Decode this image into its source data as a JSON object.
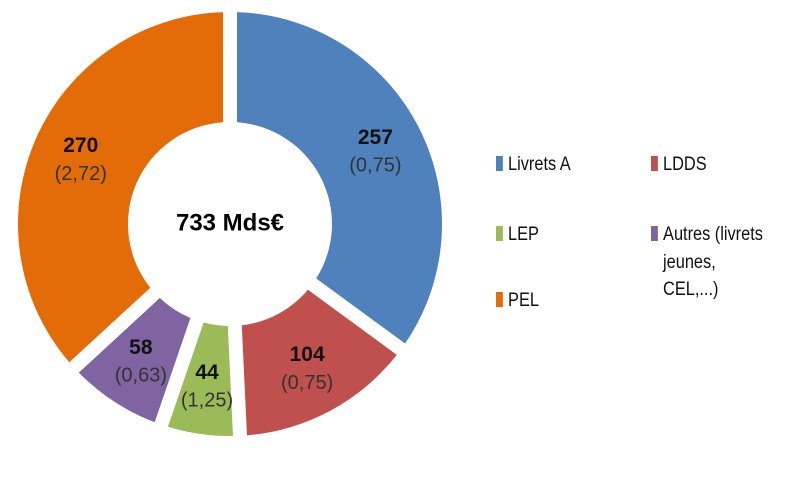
{
  "chart_data": {
    "type": "pie",
    "variant": "donut",
    "center_label": "733 Mds€",
    "slices": [
      {
        "name": "Livrets A",
        "value": 257,
        "sub": "(0,75)",
        "color": "#4F81BD"
      },
      {
        "name": "LDDS",
        "value": 104,
        "sub": "(0,75)",
        "color": "#C0504D"
      },
      {
        "name": "LEP",
        "value": 44,
        "sub": "(1,25)",
        "color": "#9BBB59"
      },
      {
        "name": "Autres (livrets jeunes, CEL,...)",
        "value": 58,
        "sub": "(0,63)",
        "color": "#8064A2"
      },
      {
        "name": "PEL",
        "value": 270,
        "sub": "(2,72)",
        "color": "#E36C09"
      }
    ],
    "legend": [
      {
        "label": "Livrets A",
        "color": "#4F81BD"
      },
      {
        "label": "LDDS",
        "color": "#C0504D"
      },
      {
        "label": "LEP",
        "color": "#9BBB59"
      },
      {
        "label": "Autres (livrets\njeunes, CEL,...)",
        "color": "#8064A2"
      },
      {
        "label": "PEL",
        "color": "#E36C09"
      }
    ],
    "legend_position": "right"
  }
}
